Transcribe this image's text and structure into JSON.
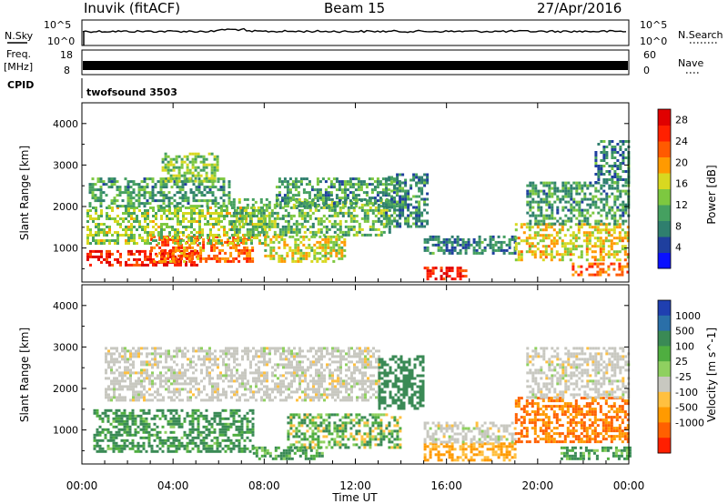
{
  "header": {
    "station": "Inuvik (fitACF)",
    "beam": "Beam 15",
    "date": "27/Apr/2016"
  },
  "top_panels": {
    "nsky_label": "N.Sky",
    "nsky_ticks": [
      "10^5",
      "10^0"
    ],
    "nsearch_label": "N.Search",
    "nsearch_ticks": [
      "10^5",
      "10^0"
    ],
    "freq_label": "Freq.",
    "freq_unit": "[MHz]",
    "freq_ticks": [
      "18",
      "8"
    ],
    "nave_label": "Nave",
    "nave_ticks": [
      "60",
      "0"
    ],
    "cpid_label": "CPID",
    "cpid_value": "twofsound 3503"
  },
  "chart_data": [
    {
      "type": "heatmap",
      "panel": "power",
      "x_axis": {
        "ticks": [
          "00:00",
          "04:00",
          "08:00",
          "12:00",
          "16:00",
          "20:00",
          "00:00"
        ],
        "range_hours": [
          0,
          24
        ]
      },
      "ylabel": "Slant Range [km]",
      "y_ticks": [
        1000,
        2000,
        3000,
        4000
      ],
      "ylim": [
        180,
        4500
      ],
      "colorbar": {
        "label": "Power [dB]",
        "ticks": [
          4,
          8,
          12,
          16,
          20,
          24,
          28
        ],
        "colors": [
          "#0a10ff",
          "#1f3f9e",
          "#2f7f6e",
          "#45a060",
          "#7dc840",
          "#d8d820",
          "#ff9a00",
          "#ff5a00",
          "#ff2000",
          "#e00000"
        ],
        "range": [
          0,
          30
        ]
      },
      "bands": [
        {
          "t0": 0.2,
          "t1": 5.0,
          "r0": 600,
          "r1": 950,
          "value": 27
        },
        {
          "t0": 3.0,
          "t1": 7.5,
          "r0": 700,
          "r1": 1300,
          "value": 22
        },
        {
          "t0": 0.2,
          "t1": 8.0,
          "r0": 1100,
          "r1": 2000,
          "value": 14
        },
        {
          "t0": 0.3,
          "t1": 6.5,
          "r0": 2000,
          "r1": 2700,
          "value": 10
        },
        {
          "t0": 3.5,
          "t1": 6.0,
          "r0": 2600,
          "r1": 3300,
          "value": 13
        },
        {
          "t0": 6.5,
          "t1": 13.5,
          "r0": 1300,
          "r1": 2200,
          "value": 12
        },
        {
          "t0": 8.0,
          "t1": 11.5,
          "r0": 700,
          "r1": 1300,
          "value": 16
        },
        {
          "t0": 8.5,
          "t1": 14.0,
          "r0": 2000,
          "r1": 2700,
          "value": 10
        },
        {
          "t0": 13.3,
          "t1": 15.2,
          "r0": 1500,
          "r1": 2800,
          "value": 9
        },
        {
          "t0": 15.0,
          "t1": 16.8,
          "r0": 250,
          "r1": 550,
          "value": 27
        },
        {
          "t0": 15.0,
          "t1": 19.0,
          "r0": 900,
          "r1": 1300,
          "value": 8
        },
        {
          "t0": 19.0,
          "t1": 24.0,
          "r0": 700,
          "r1": 1600,
          "value": 17
        },
        {
          "t0": 19.5,
          "t1": 24.0,
          "r0": 1600,
          "r1": 2600,
          "value": 10
        },
        {
          "t0": 21.5,
          "t1": 24.0,
          "r0": 350,
          "r1": 650,
          "value": 22
        },
        {
          "t0": 22.5,
          "t1": 24.0,
          "r0": 2600,
          "r1": 3600,
          "value": 8
        }
      ]
    },
    {
      "type": "heatmap",
      "panel": "velocity",
      "x_axis": {
        "ticks": [
          "00:00",
          "04:00",
          "08:00",
          "12:00",
          "16:00",
          "20:00",
          "00:00"
        ],
        "range_hours": [
          0,
          24
        ],
        "label": "Time UT"
      },
      "ylabel": "Slant Range [km]",
      "y_ticks": [
        1000,
        2000,
        3000,
        4000
      ],
      "ylim": [
        180,
        4500
      ],
      "colorbar": {
        "label": "Velocity [m s^-1]",
        "ticks": [
          1000,
          500,
          100,
          25,
          -25,
          -100,
          -500,
          -1000
        ],
        "ground_color": "#c8c8c0",
        "colors": [
          "#1f3fb0",
          "#2a6fa8",
          "#3a8a55",
          "#4fae40",
          "#8fd060",
          "#c8c8c0",
          "#ffc040",
          "#ff9a00",
          "#ff6000",
          "#ff1f00"
        ]
      },
      "bands": [
        {
          "t0": 0.5,
          "t1": 7.5,
          "r0": 500,
          "r1": 1500,
          "value": 80,
          "label": "green"
        },
        {
          "t0": 1.0,
          "t1": 13.0,
          "r0": 1700,
          "r1": 3000,
          "value": 0,
          "label": "ground"
        },
        {
          "t0": 7.5,
          "t1": 10.5,
          "r0": 300,
          "r1": 600,
          "value": 60,
          "label": "green"
        },
        {
          "t0": 9.0,
          "t1": 14.0,
          "r0": 600,
          "r1": 1400,
          "value": 40,
          "label": "green"
        },
        {
          "t0": 13.0,
          "t1": 15.0,
          "r0": 1500,
          "r1": 2800,
          "value": 200,
          "label": "blue-green"
        },
        {
          "t0": 15.0,
          "t1": 19.0,
          "r0": 300,
          "r1": 700,
          "value": -60,
          "label": "light orange"
        },
        {
          "t0": 15.0,
          "t1": 19.0,
          "r0": 700,
          "r1": 1200,
          "value": -30,
          "label": "ground"
        },
        {
          "t0": 19.0,
          "t1": 24.0,
          "r0": 700,
          "r1": 1800,
          "value": -300,
          "label": "orange"
        },
        {
          "t0": 19.5,
          "t1": 24.0,
          "r0": 1800,
          "r1": 3000,
          "value": 0,
          "label": "ground"
        },
        {
          "t0": 21.0,
          "t1": 24.0,
          "r0": 300,
          "r1": 600,
          "value": 60,
          "label": "green"
        }
      ]
    }
  ]
}
